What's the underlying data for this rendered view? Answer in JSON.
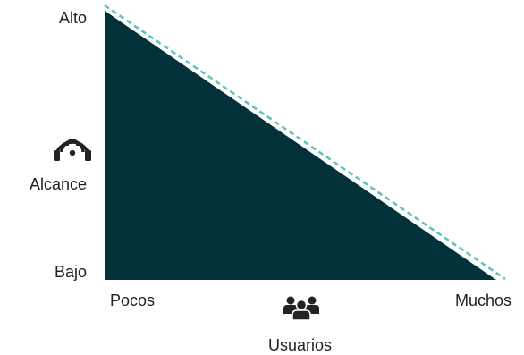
{
  "y_axis": {
    "label": "Alcance",
    "high_label": "Alto",
    "low_label": "Bajo",
    "icon": "wifi-headphones-icon"
  },
  "x_axis": {
    "label": "Usuarios",
    "low_label": "Pocos",
    "high_label": "Muchos",
    "icon": "group-users-icon"
  },
  "colors": {
    "fill": "#03313a",
    "dashed_line": "#5ec4b6",
    "text": "#222222"
  }
}
